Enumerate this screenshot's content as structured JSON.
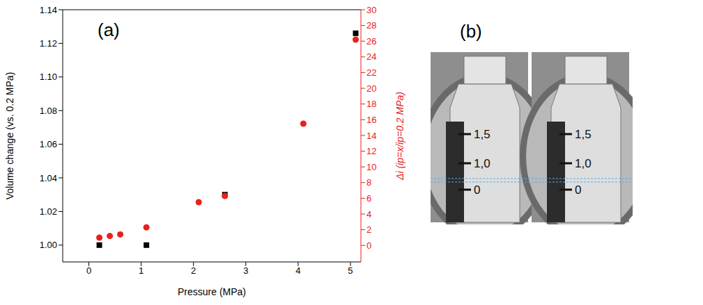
{
  "chart_data": {
    "type": "scatter",
    "panel_label": "(a)",
    "x_label": "Pressure (MPa)",
    "y_label": "Volume change (vs. 0.2 MPa)",
    "y2_label": "Δi (ip=x/ip=0.2 MPa)",
    "xlim": [
      -0.5,
      5.2
    ],
    "xticks": [
      0,
      1,
      2,
      3,
      4,
      5
    ],
    "ylim": [
      0.99,
      1.14
    ],
    "yticks": [
      {
        "value": 1.0,
        "label": "1.00"
      },
      1.02,
      1.04,
      1.06,
      1.08,
      {
        "value": 1.1,
        "label": "1.10"
      },
      1.12,
      1.14
    ],
    "y2lim": [
      -2.1,
      30
    ],
    "y2ticks": [
      0,
      2,
      4,
      6,
      8,
      10,
      12,
      14,
      16,
      18,
      20,
      22,
      24,
      26,
      28,
      30
    ],
    "grid": false,
    "series": [
      {
        "axis": "y",
        "color": "#000000",
        "marker": "square",
        "x": [
          0.2,
          1.1,
          2.6,
          5.1
        ],
        "values": [
          1.0,
          1.0,
          1.03,
          1.126
        ]
      },
      {
        "axis": "y2",
        "color": "#e8201c",
        "marker": "circle",
        "x": [
          0.2,
          0.4,
          0.6,
          1.1,
          2.1,
          2.6,
          4.1,
          5.1
        ],
        "values": [
          1.0,
          1.2,
          1.4,
          2.3,
          5.5,
          6.3,
          15.5,
          26.2
        ]
      }
    ]
  },
  "image": {
    "label": "(b)",
    "vials": [
      {
        "marks": [
          "1,5",
          "1,0",
          "0"
        ]
      },
      {
        "marks": [
          "1,5",
          "1,0",
          "0"
        ]
      }
    ]
  }
}
